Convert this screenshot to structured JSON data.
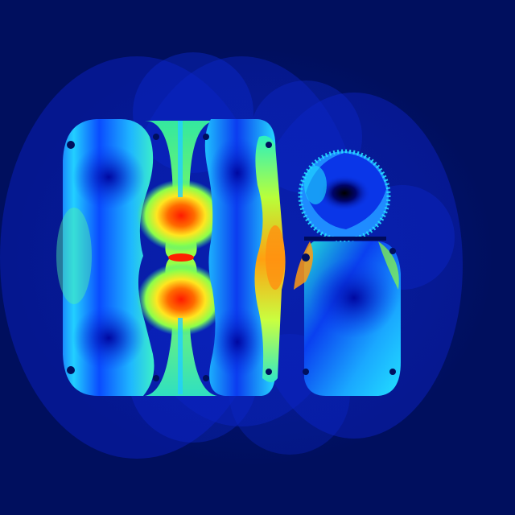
{
  "image": {
    "subject": "field-heatmap",
    "colors": {
      "background": "#000f5e",
      "halo": "#0a1fb8",
      "deep_blue": "#0018d8",
      "blue": "#0a5cff",
      "cyan": "#1fd6ff",
      "green": "#6bff6b",
      "yellow": "#f2ff2a",
      "orange": "#ff8a10",
      "red": "#ff1a00",
      "black": "#000000"
    }
  }
}
